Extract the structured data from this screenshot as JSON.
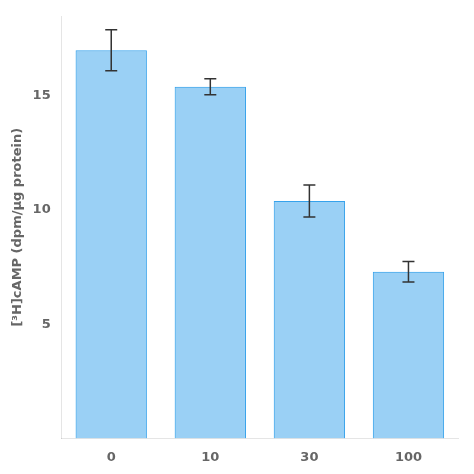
{
  "chart_data": {
    "type": "bar",
    "categories": [
      "0",
      "10",
      "30",
      "100"
    ],
    "values": [
      17.0,
      15.4,
      10.4,
      7.3
    ],
    "errors": [
      0.9,
      0.35,
      0.7,
      0.45
    ],
    "ylabel": "[³H]cAMP (dpm/µg protein)",
    "ylim": [
      0,
      18.5
    ],
    "yticks": [
      5,
      10,
      15
    ],
    "grid": false
  }
}
